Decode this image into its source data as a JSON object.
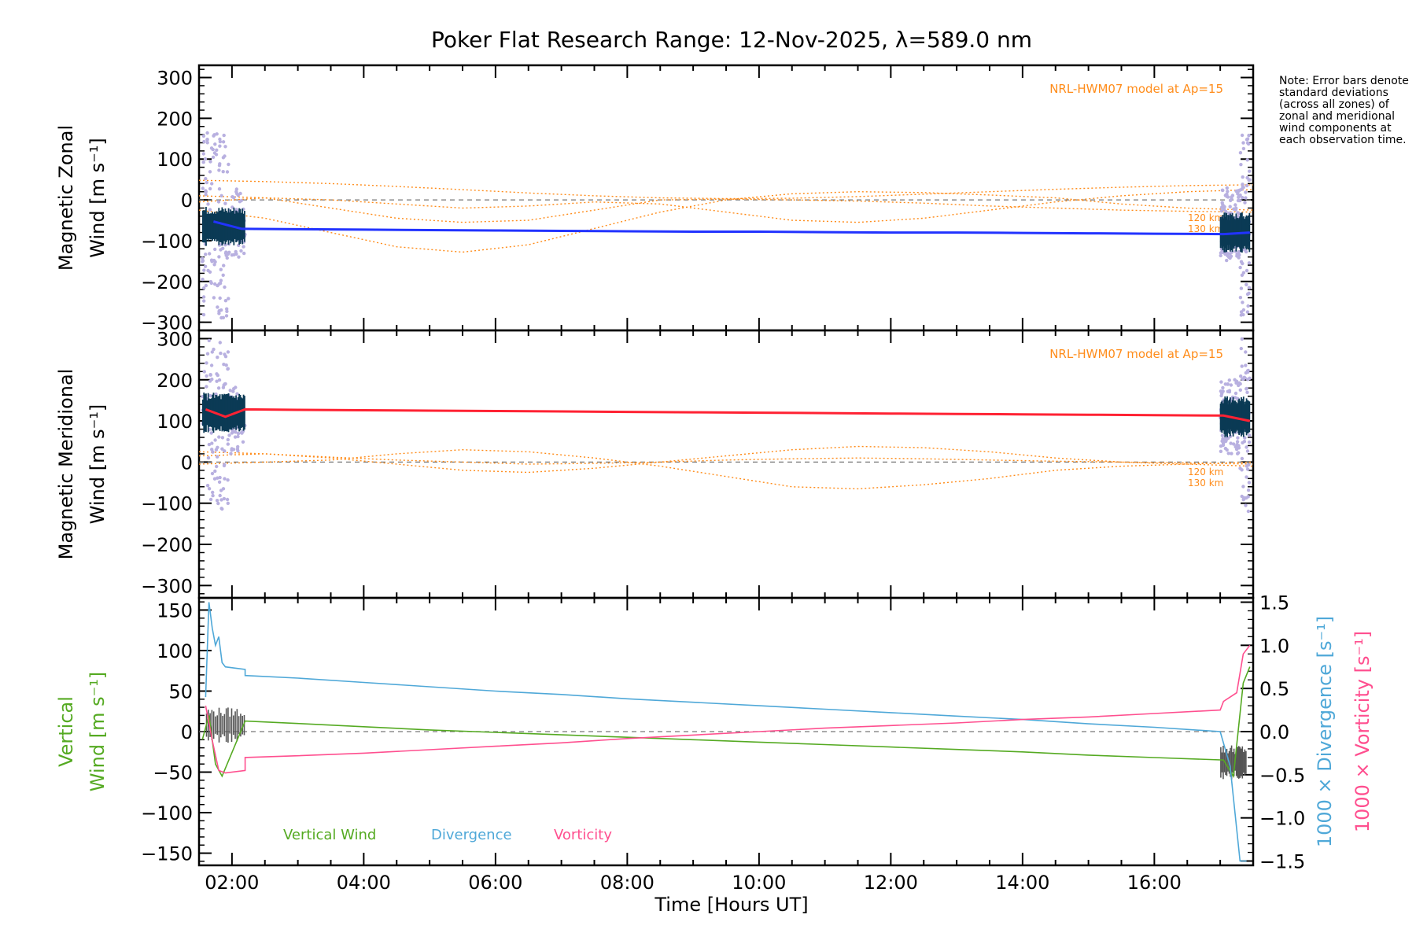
{
  "chart_data": {
    "type": "line",
    "title": "Poker Flat Research Range: 12-Nov-2025, λ=589.0 nm",
    "xlabel": "Time [Hours UT]",
    "xlim": [
      1.5,
      17.5
    ],
    "xticks": [
      2,
      4,
      6,
      8,
      10,
      12,
      14,
      16
    ],
    "xtick_labels": [
      "02:00",
      "04:00",
      "06:00",
      "08:00",
      "10:00",
      "12:00",
      "14:00",
      "16:00"
    ],
    "note": "Note: Error bars denote standard deviations (across all zones) of zonal and meridional wind components at each observation time.",
    "colors": {
      "zonal": "#2233ff",
      "meridional": "#ff2233",
      "model": "#ff8c1a",
      "scatter": "#b8b0e0",
      "errorbar": "#0b3a55",
      "vertical": "#55aa22",
      "divergence": "#4fa8d8",
      "vorticity": "#ff4f8f",
      "vert_err": "#555555",
      "zero": "#777777"
    },
    "panels": [
      {
        "name": "zonal",
        "ylabel_lines": [
          "Magnetic Zonal",
          "Wind [m s⁻¹]"
        ],
        "ylim": [
          -320,
          330
        ],
        "yticks": [
          -300,
          -200,
          -100,
          0,
          100,
          200,
          300
        ],
        "ytick_labels": [
          "−300",
          "−200",
          "−100",
          "0",
          "100",
          "200",
          "300"
        ],
        "model_label": "NRL-HWM07 model at Ap=15",
        "alt_labels": [
          "120 km",
          "130 km"
        ],
        "series": [
          {
            "name": "Zonal wind",
            "x": [
              1.72,
              2.15,
              3,
              4,
              5,
              6,
              7,
              8,
              9,
              10,
              11,
              12,
              13,
              14,
              15,
              16,
              17.05,
              17.45
            ],
            "y": [
              -53,
              -71,
              -72,
              -73,
              -74,
              -75,
              -76,
              -77,
              -78,
              -78,
              -79,
              -80,
              -80,
              -81,
              -82,
              -83,
              -84,
              -80
            ]
          },
          {
            "name": "Model 1",
            "x": [
              1.5,
              2.5,
              3.5,
              4.5,
              5.5,
              6.5,
              7.5,
              8.5,
              9.5,
              10.5,
              11.5,
              12.5,
              13.5,
              14.5,
              15.5,
              16.5,
              17.5
            ],
            "y": [
              48,
              45,
              40,
              33,
              25,
              17,
              10,
              5,
              3,
              4,
              8,
              14,
              20,
              26,
              31,
              35,
              37
            ]
          },
          {
            "name": "Model 2",
            "x": [
              1.5,
              2.5,
              3.5,
              4.5,
              5.5,
              6.5,
              7.5,
              8.5,
              9.5,
              10.5,
              11.5,
              12.5,
              13.5,
              14.5,
              15.5,
              16.5,
              17.5
            ],
            "y": [
              -25,
              -45,
              -80,
              -115,
              -128,
              -110,
              -70,
              -30,
              0,
              15,
              20,
              18,
              12,
              5,
              -10,
              -20,
              -25
            ]
          },
          {
            "name": "Model 3",
            "x": [
              1.5,
              2.5,
              3.5,
              4.5,
              5.5,
              6.5,
              7.5,
              8.5,
              9.5,
              10.5,
              11.5,
              12.5,
              13.5,
              14.5,
              15.5,
              16.5,
              17.5
            ],
            "y": [
              10,
              5,
              -20,
              -45,
              -55,
              -50,
              -25,
              0,
              2,
              0,
              -3,
              -8,
              -15,
              -20,
              -25,
              -28,
              -30
            ]
          },
          {
            "name": "Model 4",
            "x": [
              1.5,
              2.5,
              3.5,
              4.5,
              5.5,
              6.5,
              7.5,
              8.5,
              9.5,
              10.5,
              11.5,
              12.5,
              13.5,
              14.5,
              15.5,
              16.5,
              17.5
            ],
            "y": [
              -5,
              5,
              0,
              -10,
              -20,
              -15,
              -5,
              -10,
              -30,
              -50,
              -55,
              -45,
              -25,
              -5,
              10,
              20,
              25
            ]
          }
        ]
      },
      {
        "name": "meridional",
        "ylabel_lines": [
          "Magnetic Meridional",
          "Wind [m s⁻¹]"
        ],
        "ylim": [
          -330,
          320
        ],
        "yticks": [
          -300,
          -200,
          -100,
          0,
          100,
          200,
          300
        ],
        "ytick_labels": [
          "−300",
          "−200",
          "−100",
          "0",
          "100",
          "200",
          "300"
        ],
        "model_label": "NRL-HWM07 model at Ap=15",
        "alt_labels": [
          "120 km",
          "130 km"
        ],
        "series": [
          {
            "name": "Meridional wind",
            "x": [
              1.6,
              1.9,
              2.2,
              3,
              4,
              5,
              6,
              7,
              8,
              9,
              10,
              11,
              12,
              13,
              14,
              15,
              16,
              17.05,
              17.45
            ],
            "y": [
              128,
              110,
              128,
              127,
              126,
              125,
              124,
              123,
              122,
              121,
              120,
              119,
              118,
              117,
              116,
              115,
              114,
              113,
              100
            ]
          },
          {
            "name": "Model 1",
            "x": [
              1.5,
              2.5,
              3.5,
              4.5,
              5.5,
              6.5,
              7.5,
              8.5,
              9.5,
              10.5,
              11.5,
              12.5,
              13.5,
              14.5,
              15.5,
              16.5,
              17.5
            ],
            "y": [
              -5,
              0,
              5,
              20,
              30,
              25,
              10,
              -10,
              -35,
              -60,
              -65,
              -55,
              -40,
              -20,
              -10,
              -5,
              0
            ]
          },
          {
            "name": "Model 2",
            "x": [
              1.5,
              2.5,
              3.5,
              4.5,
              5.5,
              6.5,
              7.5,
              8.5,
              9.5,
              10.5,
              11.5,
              12.5,
              13.5,
              14.5,
              15.5,
              16.5,
              17.5
            ],
            "y": [
              15,
              20,
              10,
              -5,
              -20,
              -25,
              -15,
              0,
              15,
              30,
              38,
              35,
              25,
              10,
              0,
              -5,
              -10
            ]
          },
          {
            "name": "Model 3",
            "x": [
              1.5,
              2.5,
              3.5,
              4.5,
              5.5,
              6.5,
              7.5,
              8.5,
              9.5,
              10.5,
              11.5,
              12.5,
              13.5,
              14.5,
              15.5,
              16.5,
              17.5
            ],
            "y": [
              25,
              20,
              12,
              5,
              0,
              -5,
              -3,
              0,
              5,
              8,
              10,
              8,
              5,
              2,
              0,
              -2,
              -5
            ]
          }
        ]
      },
      {
        "name": "vertical",
        "ylabel_lines": [
          "Vertical",
          "Wind [m s⁻¹]"
        ],
        "ylim": [
          -165,
          165
        ],
        "yticks": [
          -150,
          -100,
          -50,
          0,
          50,
          100,
          150
        ],
        "ytick_labels": [
          "−150",
          "−100",
          "−50",
          "0",
          "50",
          "100",
          "150"
        ],
        "y2lim": [
          -1.55,
          1.55
        ],
        "y2ticks": [
          -1.5,
          -1.0,
          -0.5,
          0.0,
          0.5,
          1.0,
          1.5
        ],
        "y2tick_labels": [
          "−1.5",
          "−1.0",
          "−0.5",
          "0.0",
          "0.5",
          "1.0",
          "1.5"
        ],
        "y2label_div": "1000 × Divergence [s⁻¹]",
        "y2label_vor": "1000 × Vorticity [s⁻¹]",
        "legend": [
          "Vertical Wind",
          "Divergence",
          "Vorticity"
        ],
        "series": [
          {
            "name": "Vertical Wind",
            "axis": "left",
            "x": [
              1.55,
              1.65,
              1.75,
              1.85,
              2.2,
              3,
              4,
              5,
              6,
              7,
              8,
              9,
              10,
              11,
              12,
              13,
              14,
              15,
              16,
              17.05,
              17.2,
              17.35,
              17.45
            ],
            "y": [
              -10,
              20,
              -40,
              -55,
              13,
              10,
              6,
              2,
              -1,
              -4,
              -7,
              -10,
              -13,
              -16,
              -19,
              -22,
              -25,
              -29,
              -32,
              -35,
              -55,
              60,
              80
            ]
          },
          {
            "name": "Divergence",
            "axis": "right",
            "x": [
              1.6,
              1.65,
              1.7,
              1.75,
              1.8,
              1.85,
              1.9,
              2.2,
              2.2,
              3,
              4,
              5,
              6,
              7,
              8,
              9,
              10,
              11,
              12,
              13,
              14,
              15,
              16,
              17.0,
              17.15,
              17.3,
              17.4
            ],
            "y": [
              0.4,
              1.5,
              1.2,
              1.0,
              1.1,
              0.8,
              0.75,
              0.72,
              0.65,
              0.62,
              0.57,
              0.52,
              0.47,
              0.43,
              0.38,
              0.34,
              0.3,
              0.26,
              0.22,
              0.18,
              0.14,
              0.09,
              0.05,
              0.0,
              -0.4,
              -1.5,
              -1.5
            ]
          },
          {
            "name": "Vorticity",
            "axis": "right",
            "x": [
              1.6,
              1.7,
              1.8,
              1.9,
              2.2,
              2.2,
              3,
              4,
              5,
              6,
              7,
              8,
              9,
              10,
              11,
              12,
              13,
              14,
              15,
              16,
              17.0,
              17.05,
              17.25,
              17.35,
              17.45
            ],
            "y": [
              0.3,
              -0.1,
              -0.45,
              -0.48,
              -0.45,
              -0.3,
              -0.28,
              -0.25,
              -0.21,
              -0.17,
              -0.13,
              -0.08,
              -0.04,
              0.0,
              0.04,
              0.07,
              0.1,
              0.14,
              0.17,
              0.21,
              0.25,
              0.35,
              0.45,
              0.9,
              1.0
            ]
          }
        ]
      }
    ]
  }
}
